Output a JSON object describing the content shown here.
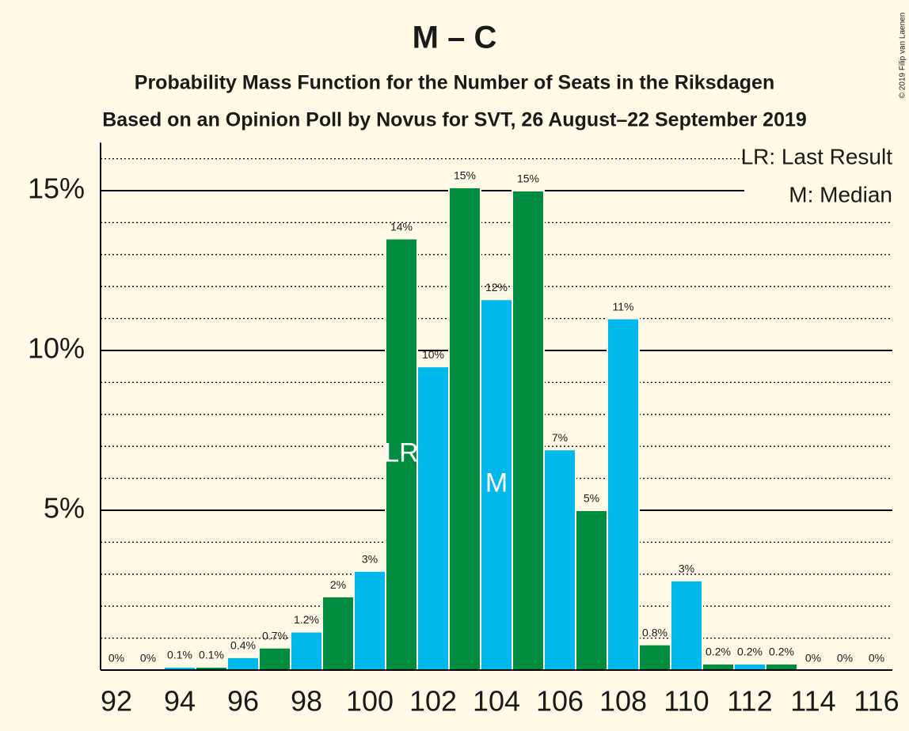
{
  "chart_data": {
    "type": "bar",
    "title": "M – C",
    "subtitle": "Probability Mass Function for the Number of Seats in the Riksdagen",
    "subtitle2": "Based on an Opinion Poll by Novus for SVT, 26 August–22 September 2019",
    "copyright": "© 2019 Filip van Laenen",
    "categories": [
      92,
      null,
      94,
      null,
      96,
      null,
      98,
      null,
      100,
      null,
      102,
      null,
      104,
      null,
      106,
      null,
      108,
      null,
      110,
      null,
      112,
      null,
      114,
      null,
      116
    ],
    "values": [
      0,
      0,
      0.1,
      0.1,
      0.4,
      0.7,
      1.2,
      2.3,
      3.1,
      13.5,
      9.5,
      15.1,
      11.6,
      15.0,
      6.9,
      5.0,
      11.0,
      0.8,
      2.8,
      0.2,
      0.2,
      0.2,
      0,
      0,
      0
    ],
    "value_labels": [
      "0%",
      "0%",
      "0.1%",
      "0.1%",
      "0.4%",
      "0.7%",
      "1.2%",
      "2%",
      "3%",
      "14%",
      "10%",
      "15%",
      "12%",
      "15%",
      "7%",
      "5%",
      "11%",
      "0.8%",
      "3%",
      "0.2%",
      "0.2%",
      "0.2%",
      "0%",
      "0%",
      "0%"
    ],
    "colors": [
      "#00b9ec",
      "#008c3f"
    ],
    "ylim": [
      0,
      16.5
    ],
    "yticks": [
      {
        "value": 5,
        "label": "5%"
      },
      {
        "value": 10,
        "label": "10%"
      },
      {
        "value": 15,
        "label": "15%"
      }
    ],
    "minor_yticks": [
      1,
      2,
      3,
      4,
      6,
      7,
      8,
      9,
      11,
      12,
      13,
      14,
      16
    ],
    "markers": [
      {
        "label": "LR",
        "index": 9
      },
      {
        "label": "M",
        "index": 12
      }
    ],
    "legend": [
      "LR: Last Result",
      "M: Median"
    ],
    "grid": true
  }
}
